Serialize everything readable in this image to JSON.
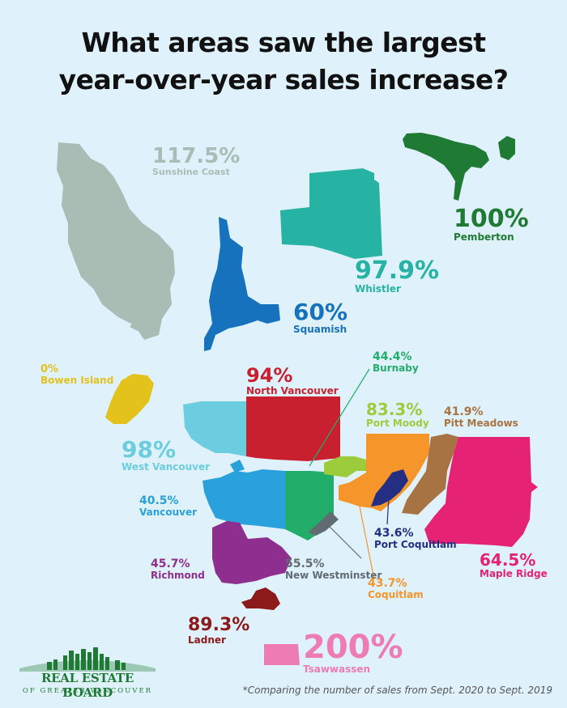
{
  "title": {
    "line1": "What areas saw the largest",
    "line2": "year-over-year sales increase?"
  },
  "areas": [
    {
      "id": "sunshine-coast",
      "name": "Sunshine Coast",
      "percent": "117.5%",
      "value": 117.5,
      "color": "#a9bdb4"
    },
    {
      "id": "pemberton",
      "name": "Pemberton",
      "percent": "100%",
      "value": 100,
      "color": "#1f7a34"
    },
    {
      "id": "whistler",
      "name": "Whistler",
      "percent": "97.9%",
      "value": 97.9,
      "color": "#26b3a3"
    },
    {
      "id": "squamish",
      "name": "Squamish",
      "percent": "60%",
      "value": 60,
      "color": "#1672bd"
    },
    {
      "id": "bowen-island",
      "name": "Bowen Island",
      "percent": "0%",
      "value": 0,
      "color": "#e3c21c"
    },
    {
      "id": "north-vancouver",
      "name": "North Vancouver",
      "percent": "94%",
      "value": 94,
      "color": "#c8202e"
    },
    {
      "id": "burnaby",
      "name": "Burnaby",
      "percent": "44.4%",
      "value": 44.4,
      "color": "#22ae6a"
    },
    {
      "id": "port-moody",
      "name": "Port Moody",
      "percent": "83.3%",
      "value": 83.3,
      "color": "#9ccc3c"
    },
    {
      "id": "pitt-meadows",
      "name": "Pitt Meadows",
      "percent": "41.9%",
      "value": 41.9,
      "color": "#a87343"
    },
    {
      "id": "west-vancouver",
      "name": "West Vancouver",
      "percent": "98%",
      "value": 98,
      "color": "#6ccde0"
    },
    {
      "id": "vancouver",
      "name": "Vancouver",
      "percent": "40.5%",
      "value": 40.5,
      "color": "#28a1dd"
    },
    {
      "id": "port-coquitlam",
      "name": "Port Coquitlam",
      "percent": "43.6%",
      "value": 43.6,
      "color": "#242e83"
    },
    {
      "id": "maple-ridge",
      "name": "Maple Ridge",
      "percent": "64.5%",
      "value": 64.5,
      "color": "#e52274"
    },
    {
      "id": "richmond",
      "name": "Richmond",
      "percent": "45.7%",
      "value": 45.7,
      "color": "#8e2e8e"
    },
    {
      "id": "new-westminster",
      "name": "New Westminster",
      "percent": "55.5%",
      "value": 55.5,
      "color": "#606c71"
    },
    {
      "id": "coquitlam",
      "name": "Coquitlam",
      "percent": "43.7%",
      "value": 43.7,
      "color": "#f5952a"
    },
    {
      "id": "ladner",
      "name": "Ladner",
      "percent": "89.3%",
      "value": 89.3,
      "color": "#8c1a1a"
    },
    {
      "id": "tsawwassen",
      "name": "Tsawwassen",
      "percent": "200%",
      "value": 200,
      "color": "#ee7cb4"
    }
  ],
  "logo": {
    "name": "REAL ESTATE BOARD",
    "subtitle": "OF GREATER VANCOUVER"
  },
  "footnote": "*Comparing the number of sales from Sept. 2020 to Sept. 2019"
}
